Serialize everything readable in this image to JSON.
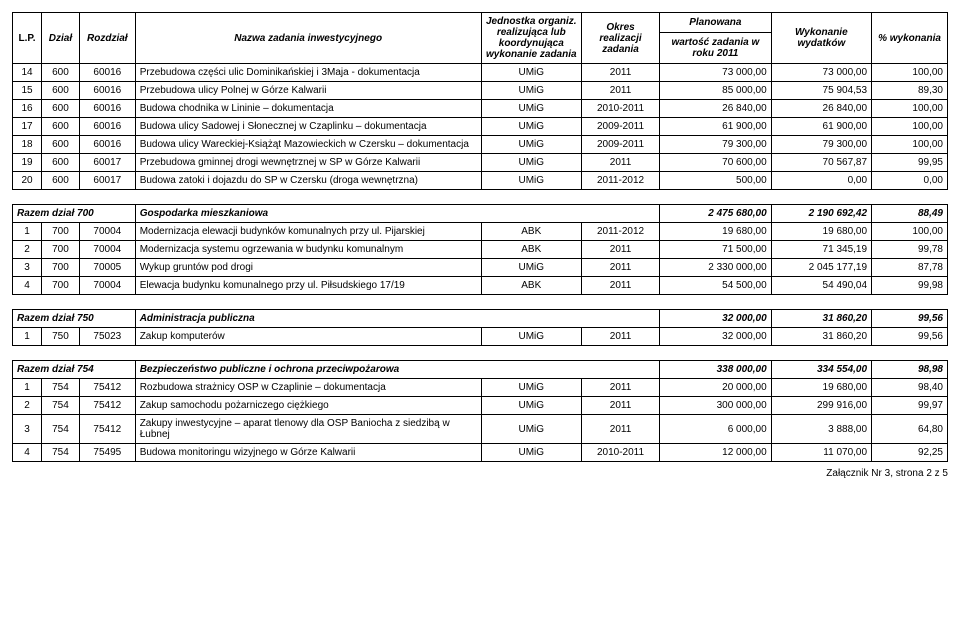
{
  "header": {
    "lp": "L.P.",
    "dzial": "Dział",
    "rozdzial": "Rozdział",
    "nazwa": "Nazwa zadania inwestycyjnego",
    "jednostka": "Jednostka organiz. realizująca lub koordynująca wykonanie zadania",
    "okres": "Okres realizacji zadania",
    "planowana": "Planowana",
    "wartosc": "wartość zadania w roku 2011",
    "wykonanie": "Wykonanie wydatków",
    "pct": "% wykonania"
  },
  "rows": [
    {
      "lp": "14",
      "dzial": "600",
      "rozdzial": "60016",
      "nazwa": "Przebudowa części ulic Dominikańskiej i 3Maja - dokumentacja",
      "jedn": "UMiG",
      "okres": "2011",
      "wartosc": "73 000,00",
      "wyk": "73 000,00",
      "pct": "100,00"
    },
    {
      "lp": "15",
      "dzial": "600",
      "rozdzial": "60016",
      "nazwa": "Przebudowa ulicy Polnej w Górze Kalwarii",
      "jedn": "UMiG",
      "okres": "2011",
      "wartosc": "85 000,00",
      "wyk": "75 904,53",
      "pct": "89,30"
    },
    {
      "lp": "16",
      "dzial": "600",
      "rozdzial": "60016",
      "nazwa": "Budowa chodnika w Lininie – dokumentacja",
      "jedn": "UMiG",
      "okres": "2010-2011",
      "wartosc": "26 840,00",
      "wyk": "26 840,00",
      "pct": "100,00"
    },
    {
      "lp": "17",
      "dzial": "600",
      "rozdzial": "60016",
      "nazwa": "Budowa ulicy Sadowej i Słonecznej w Czaplinku – dokumentacja",
      "jedn": "UMiG",
      "okres": "2009-2011",
      "wartosc": "61 900,00",
      "wyk": "61 900,00",
      "pct": "100,00"
    },
    {
      "lp": "18",
      "dzial": "600",
      "rozdzial": "60016",
      "nazwa": "Budowa ulicy Wareckiej-Książąt Mazowieckich w Czersku – dokumentacja",
      "jedn": "UMiG",
      "okres": "2009-2011",
      "wartosc": "79 300,00",
      "wyk": "79 300,00",
      "pct": "100,00"
    },
    {
      "lp": "19",
      "dzial": "600",
      "rozdzial": "60017",
      "nazwa": "Przebudowa gminnej drogi wewnętrznej  w SP w Górze Kalwarii",
      "jedn": "UMiG",
      "okres": "2011",
      "wartosc": "70 600,00",
      "wyk": "70 567,87",
      "pct": "99,95"
    },
    {
      "lp": "20",
      "dzial": "600",
      "rozdzial": "60017",
      "nazwa": "Budowa zatoki i dojazdu do SP w Czersku (droga wewnętrzna)",
      "jedn": "UMiG",
      "okres": "2011-2012",
      "wartosc": "500,00",
      "wyk": "0,00",
      "pct": "0,00"
    }
  ],
  "section700": {
    "label": "Razem dział 700",
    "title": "Gospodarka mieszkaniowa",
    "wartosc": "2 475 680,00",
    "wyk": "2 190 692,42",
    "pct": "88,49",
    "rows": [
      {
        "lp": "1",
        "dzial": "700",
        "rozdzial": "70004",
        "nazwa": "Modernizacja elewacji budynków komunalnych przy ul. Pijarskiej",
        "jedn": "ABK",
        "okres": "2011-2012",
        "wartosc": "19 680,00",
        "wyk": "19 680,00",
        "pct": "100,00"
      },
      {
        "lp": "2",
        "dzial": "700",
        "rozdzial": "70004",
        "nazwa": "Modernizacja systemu ogrzewania w budynku komunalnym",
        "jedn": "ABK",
        "okres": "2011",
        "wartosc": "71 500,00",
        "wyk": "71 345,19",
        "pct": "99,78"
      },
      {
        "lp": "3",
        "dzial": "700",
        "rozdzial": "70005",
        "nazwa": "Wykup gruntów pod drogi",
        "jedn": "UMiG",
        "okres": "2011",
        "wartosc": "2 330 000,00",
        "wyk": "2 045 177,19",
        "pct": "87,78"
      },
      {
        "lp": "4",
        "dzial": "700",
        "rozdzial": "70004",
        "nazwa": "Elewacja budynku komunalnego przy ul. Piłsudskiego 17/19",
        "jedn": "ABK",
        "okres": "2011",
        "wartosc": "54 500,00",
        "wyk": "54 490,04",
        "pct": "99,98"
      }
    ]
  },
  "section750": {
    "label": "Razem dział 750",
    "title": "Administracja publiczna",
    "wartosc": "32 000,00",
    "wyk": "31 860,20",
    "pct": "99,56",
    "rows": [
      {
        "lp": "1",
        "dzial": "750",
        "rozdzial": "75023",
        "nazwa": "Zakup komputerów",
        "jedn": "UMiG",
        "okres": "2011",
        "wartosc": "32 000,00",
        "wyk": "31 860,20",
        "pct": "99,56"
      }
    ]
  },
  "section754": {
    "label": "Razem dział 754",
    "title": "Bezpieczeństwo publiczne i ochrona przeciwpożarowa",
    "wartosc": "338 000,00",
    "wyk": "334 554,00",
    "pct": "98,98",
    "rows": [
      {
        "lp": "1",
        "dzial": "754",
        "rozdzial": "75412",
        "nazwa": "Rozbudowa strażnicy OSP w Czaplinie – dokumentacja",
        "jedn": "UMiG",
        "okres": "2011",
        "wartosc": "20 000,00",
        "wyk": "19 680,00",
        "pct": "98,40"
      },
      {
        "lp": "2",
        "dzial": "754",
        "rozdzial": "75412",
        "nazwa": "Zakup samochodu pożarniczego ciężkiego",
        "jedn": "UMiG",
        "okres": "2011",
        "wartosc": "300 000,00",
        "wyk": "299 916,00",
        "pct": "99,97"
      },
      {
        "lp": "3",
        "dzial": "754",
        "rozdzial": "75412",
        "nazwa": "Zakupy inwestycyjne – aparat tlenowy dla OSP Baniocha z siedzibą w Łubnej",
        "jedn": "UMiG",
        "okres": "2011",
        "wartosc": "6 000,00",
        "wyk": "3 888,00",
        "pct": "64,80"
      },
      {
        "lp": "4",
        "dzial": "754",
        "rozdzial": "75495",
        "nazwa": "Budowa monitoringu wizyjnego w Górze Kalwarii",
        "jedn": "UMiG",
        "okres": "2010-2011",
        "wartosc": "12 000,00",
        "wyk": "11 070,00",
        "pct": "92,25"
      }
    ]
  },
  "footer": "Załącznik Nr 3, strona 2 z 5"
}
